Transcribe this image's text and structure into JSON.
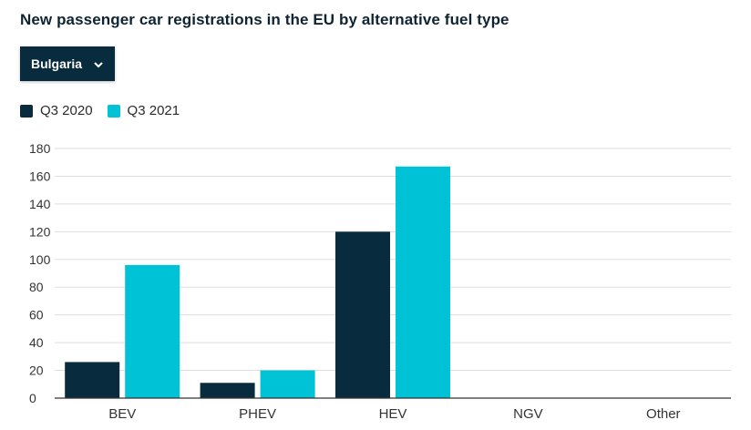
{
  "dropdown": {
    "selected": "Bulgaria",
    "icon": "chevron-down-icon"
  },
  "colors": {
    "q3_2020": "#082b3e",
    "q3_2021": "#00c2d7",
    "grid": "#dddddd",
    "axis": "#333333"
  },
  "chart_data": {
    "type": "bar",
    "title": "New passenger car registrations in the EU by alternative fuel type",
    "categories": [
      "BEV",
      "PHEV",
      "HEV",
      "NGV",
      "Other"
    ],
    "series": [
      {
        "name": "Q3 2020",
        "values": [
          26,
          11,
          120,
          0,
          0
        ]
      },
      {
        "name": "Q3 2021",
        "values": [
          96,
          20,
          167,
          0,
          0
        ]
      }
    ],
    "ylim": [
      0,
      180
    ],
    "yticks": [
      0,
      20,
      40,
      60,
      80,
      100,
      120,
      140,
      160,
      180
    ],
    "grid": true,
    "legend_position": "top-left"
  }
}
